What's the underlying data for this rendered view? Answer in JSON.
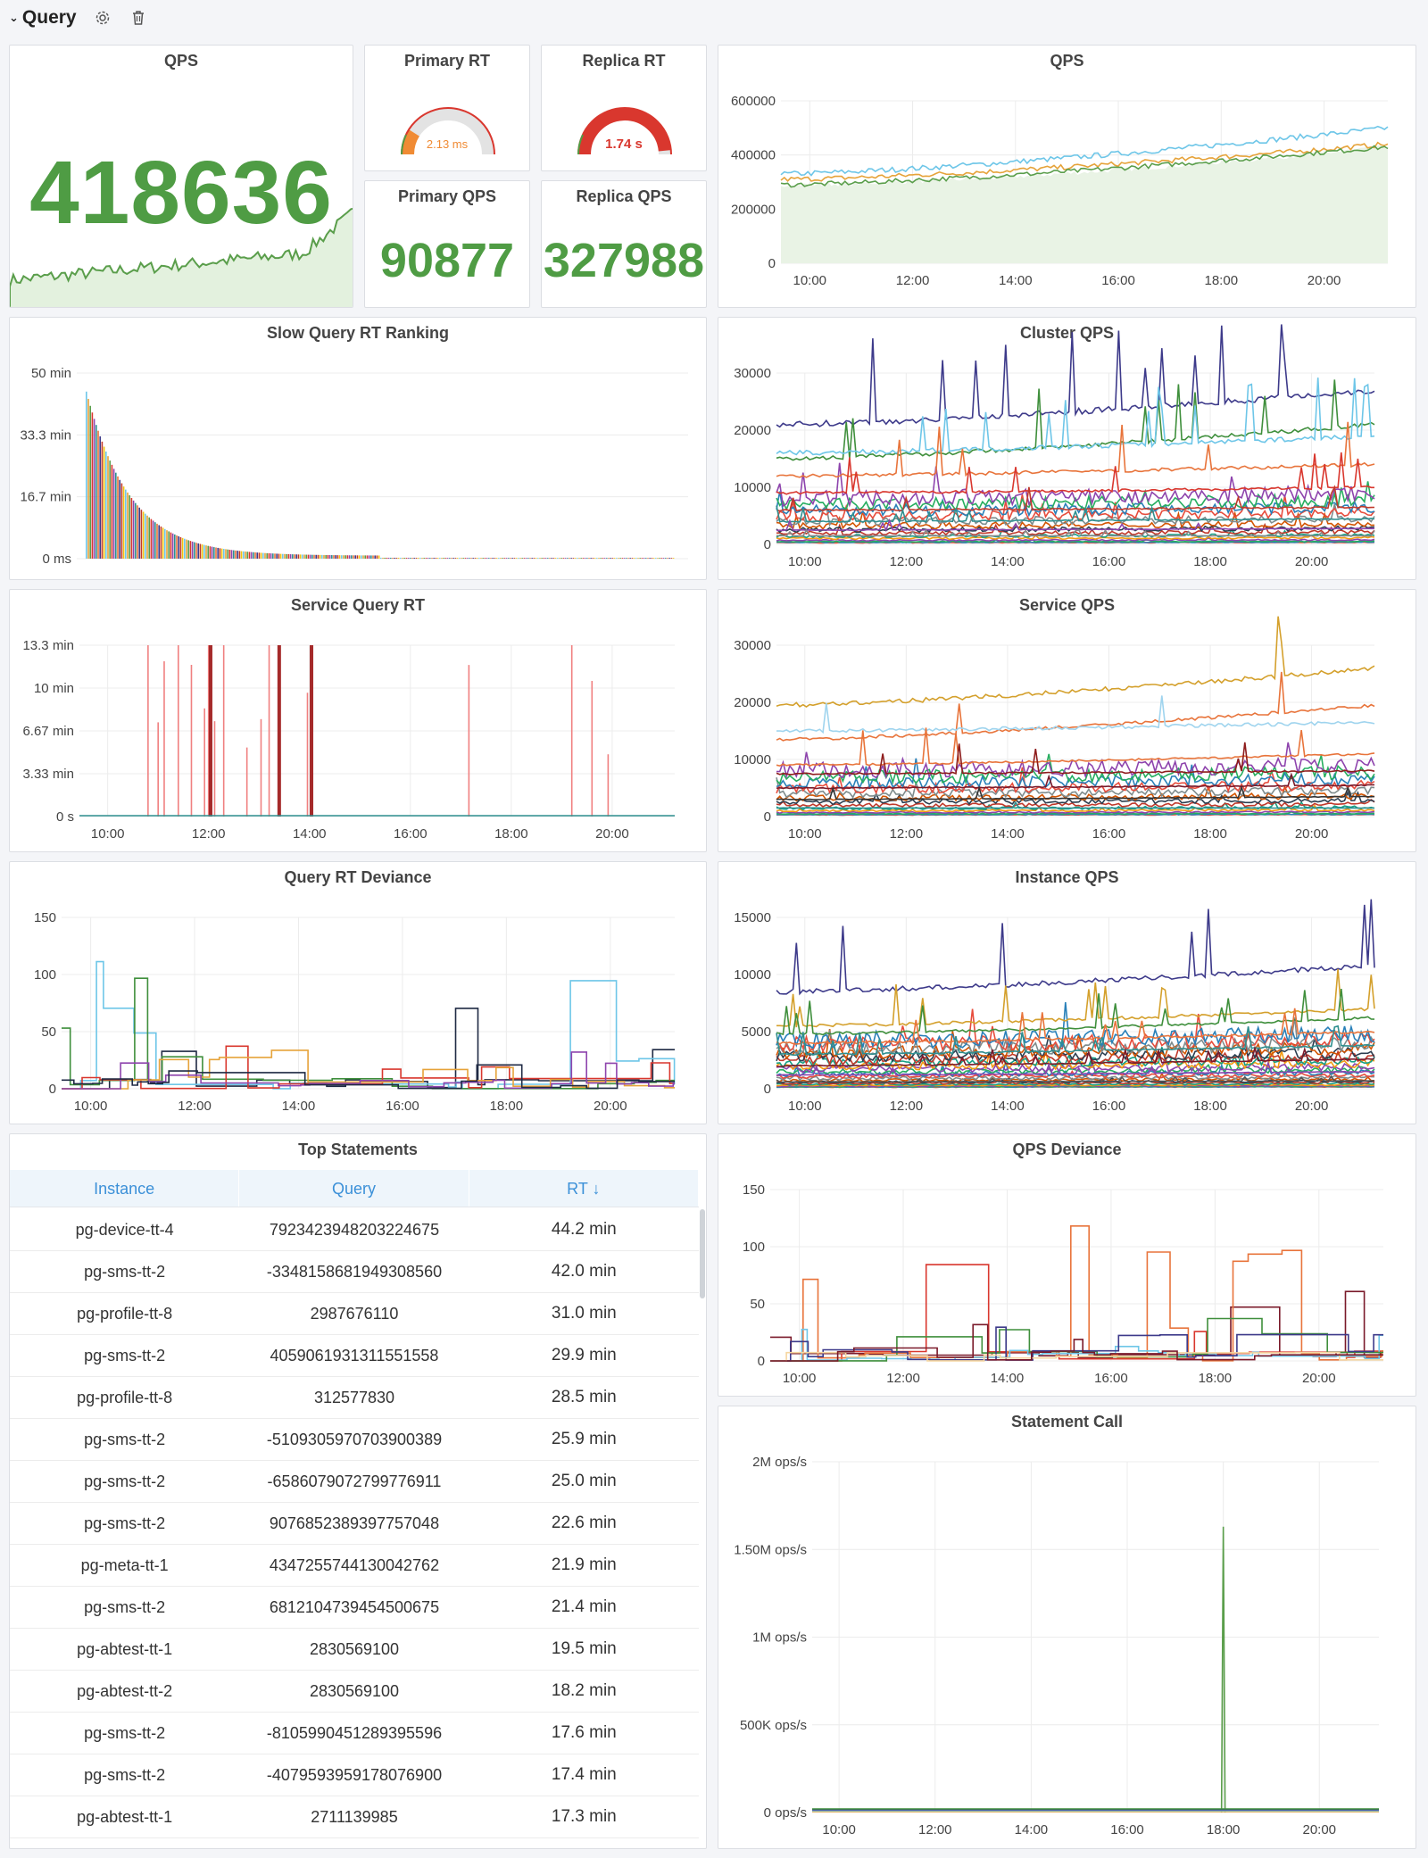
{
  "row": {
    "title": "Query",
    "chevron": "⌄",
    "icons": [
      "gear-icon",
      "trash-icon"
    ]
  },
  "colors": {
    "green": "#4f9c44",
    "orange": "#f08b34",
    "red": "#d9372e",
    "grid": "#ececec",
    "axis": "#444"
  },
  "panels": {
    "qps_stat": {
      "title": "QPS",
      "value": "418636"
    },
    "primary_rt": {
      "title": "Primary RT",
      "value": "2.13 ms",
      "fraction": 0.18
    },
    "replica_rt": {
      "title": "Replica RT",
      "value": "1.74 s",
      "fraction": 0.97
    },
    "primary_qps": {
      "title": "Primary QPS",
      "value": "90877"
    },
    "replica_qps": {
      "title": "Replica QPS",
      "value": "327988"
    },
    "qps_chart": {
      "title": "QPS"
    },
    "slow_rank": {
      "title": "Slow Query RT Ranking"
    },
    "cluster_qps": {
      "title": "Cluster QPS"
    },
    "service_rt": {
      "title": "Service Query RT"
    },
    "service_qps": {
      "title": "Service QPS"
    },
    "rt_deviance": {
      "title": "Query RT Deviance"
    },
    "instance_qps": {
      "title": "Instance QPS"
    },
    "top_statements": {
      "title": "Top Statements"
    },
    "qps_deviance": {
      "title": "QPS Deviance"
    },
    "statement_call": {
      "title": "Statement Call"
    }
  },
  "table": {
    "columns": [
      "Instance",
      "Query",
      "RT ↓"
    ],
    "rows": [
      {
        "instance": "pg-device-tt-4",
        "query": "7923423948203224675",
        "rt": "44.2 min"
      },
      {
        "instance": "pg-sms-tt-2",
        "query": "-3348158681949308560",
        "rt": "42.0 min"
      },
      {
        "instance": "pg-profile-tt-8",
        "query": "2987676110",
        "rt": "31.0 min"
      },
      {
        "instance": "pg-sms-tt-2",
        "query": "4059061931311551558",
        "rt": "29.9 min"
      },
      {
        "instance": "pg-profile-tt-8",
        "query": "312577830",
        "rt": "28.5 min"
      },
      {
        "instance": "pg-sms-tt-2",
        "query": "-5109305970703900389",
        "rt": "25.9 min"
      },
      {
        "instance": "pg-sms-tt-2",
        "query": "-6586079072799776911",
        "rt": "25.0 min"
      },
      {
        "instance": "pg-sms-tt-2",
        "query": "9076852389397757048",
        "rt": "22.6 min"
      },
      {
        "instance": "pg-meta-tt-1",
        "query": "4347255744130042762",
        "rt": "21.9 min"
      },
      {
        "instance": "pg-sms-tt-2",
        "query": "6812104739454500675",
        "rt": "21.4 min"
      },
      {
        "instance": "pg-abtest-tt-1",
        "query": "2830569100",
        "rt": "19.5 min"
      },
      {
        "instance": "pg-abtest-tt-2",
        "query": "2830569100",
        "rt": "18.2 min"
      },
      {
        "instance": "pg-sms-tt-2",
        "query": "-8105990451289395596",
        "rt": "17.6 min"
      },
      {
        "instance": "pg-sms-tt-2",
        "query": "-4079593959178076900",
        "rt": "17.4 min"
      },
      {
        "instance": "pg-abtest-tt-1",
        "query": "2711139985",
        "rt": "17.3 min"
      }
    ]
  },
  "chart_data": [
    {
      "id": "qps_chart",
      "type": "line",
      "x_ticks": [
        "10:00",
        "12:00",
        "14:00",
        "16:00",
        "18:00",
        "20:00"
      ],
      "y_ticks": [
        "600000",
        "400000",
        "200000",
        "0"
      ],
      "ylim": [
        0,
        600000
      ],
      "series": [
        {
          "start": 330000,
          "end": 500000,
          "color": "#6ec6e8"
        },
        {
          "start": 310000,
          "end": 440000,
          "color": "#e6a33a"
        },
        {
          "start": 290000,
          "end": 430000,
          "color": "#5a9e4b"
        }
      ]
    },
    {
      "id": "slow_rank",
      "type": "bar",
      "y_ticks": [
        "50 min",
        "33.3 min",
        "16.7 min",
        "0 ms"
      ],
      "ylim": [
        0,
        50
      ],
      "peak": 44.2
    },
    {
      "id": "cluster_qps",
      "type": "line",
      "x_ticks": [
        "10:00",
        "12:00",
        "14:00",
        "16:00",
        "18:00",
        "20:00"
      ],
      "y_ticks": [
        "30000",
        "20000",
        "10000",
        "0"
      ],
      "ylim": [
        0,
        30000
      ],
      "series": [
        {
          "start": 21000,
          "end": 27000,
          "color": "#3d3a8a"
        },
        {
          "start": 15000,
          "end": 21000,
          "color": "#3f8f3c"
        },
        {
          "start": 16000,
          "end": 19000,
          "color": "#6ec6e8"
        },
        {
          "start": 12000,
          "end": 14000,
          "color": "#e8743b"
        },
        {
          "start": 9000,
          "end": 10000,
          "color": "#d9372e"
        },
        {
          "start": 6000,
          "end": 6500,
          "color": "#c0392b"
        },
        {
          "start": 4000,
          "end": 4500,
          "color": "#2f8f8f"
        },
        {
          "start": 2500,
          "end": 2800,
          "color": "#8e44ad"
        },
        {
          "start": 1500,
          "end": 1500,
          "color": "#888888"
        }
      ]
    },
    {
      "id": "service_rt",
      "type": "line",
      "x_ticks": [
        "10:00",
        "12:00",
        "14:00",
        "16:00",
        "18:00",
        "20:00"
      ],
      "y_ticks": [
        "13.3 min",
        "10 min",
        "6.67 min",
        "3.33 min",
        "0 s"
      ],
      "ylim": [
        0,
        13.3
      ]
    },
    {
      "id": "service_qps",
      "type": "line",
      "x_ticks": [
        "10:00",
        "12:00",
        "14:00",
        "16:00",
        "18:00",
        "20:00"
      ],
      "y_ticks": [
        "30000",
        "20000",
        "10000",
        "0"
      ],
      "ylim": [
        0,
        30000
      ],
      "series": [
        {
          "start": 19500,
          "end": 26000,
          "color": "#d4a02c"
        },
        {
          "start": 13500,
          "end": 19500,
          "color": "#e8743b"
        },
        {
          "start": 15000,
          "end": 16500,
          "color": "#9fd4ee"
        },
        {
          "start": 9000,
          "end": 11000,
          "color": "#e8743b"
        },
        {
          "start": 7500,
          "end": 8000,
          "color": "#8e1d1d"
        },
        {
          "start": 5000,
          "end": 5500,
          "color": "#7a1a2a"
        },
        {
          "start": 3000,
          "end": 3500,
          "color": "#333333"
        },
        {
          "start": 1500,
          "end": 1500,
          "color": "#2f8f8f"
        }
      ]
    },
    {
      "id": "rt_deviance",
      "type": "line",
      "x_ticks": [
        "10:00",
        "12:00",
        "14:00",
        "16:00",
        "18:00",
        "20:00"
      ],
      "y_ticks": [
        "150",
        "100",
        "50",
        "0"
      ],
      "ylim": [
        0,
        150
      ]
    },
    {
      "id": "instance_qps",
      "type": "line",
      "x_ticks": [
        "10:00",
        "12:00",
        "14:00",
        "16:00",
        "18:00",
        "20:00"
      ],
      "y_ticks": [
        "15000",
        "10000",
        "5000",
        "0"
      ],
      "ylim": [
        0,
        15000
      ],
      "series": [
        {
          "start": 8500,
          "end": 10800,
          "color": "#3d3a8a"
        },
        {
          "start": 5500,
          "end": 7000,
          "color": "#d4a02c"
        },
        {
          "start": 4800,
          "end": 6200,
          "color": "#3f8f3c"
        },
        {
          "start": 4000,
          "end": 5000,
          "color": "#e8743b"
        },
        {
          "start": 3000,
          "end": 3800,
          "color": "#2f8f8f"
        },
        {
          "start": 2000,
          "end": 2600,
          "color": "#7a1a2a"
        },
        {
          "start": 1200,
          "end": 1500,
          "color": "#8e44ad"
        },
        {
          "start": 600,
          "end": 700,
          "color": "#555555"
        }
      ]
    },
    {
      "id": "qps_deviance",
      "type": "line",
      "x_ticks": [
        "10:00",
        "12:00",
        "14:00",
        "16:00",
        "18:00",
        "20:00"
      ],
      "y_ticks": [
        "150",
        "100",
        "50",
        "0"
      ],
      "ylim": [
        0,
        150
      ]
    },
    {
      "id": "statement_call",
      "type": "line",
      "x_ticks": [
        "10:00",
        "12:00",
        "14:00",
        "16:00",
        "18:00",
        "20:00"
      ],
      "y_ticks": [
        "2M ops/s",
        "1.50M ops/s",
        "1M ops/s",
        "500K ops/s",
        "0 ops/s"
      ],
      "ylim": [
        0,
        2000000
      ],
      "spike": {
        "x": "18:00",
        "value": 1630000,
        "color": "#5a9e4b"
      }
    }
  ]
}
